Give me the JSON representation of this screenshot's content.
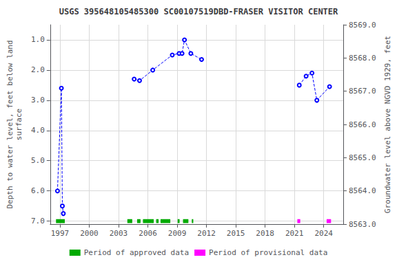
{
  "chart_data": {
    "type": "line",
    "title": "USGS 395648105485300 SC00107519DBD-FRASER VISITOR CENTER",
    "ylabel": "Depth to water level, feet below land\nsurface",
    "y2label": "Groundwater level above NGVD 1929, feet",
    "xlim": [
      1996.0,
      2026.0
    ],
    "xticks": [
      1997,
      2000,
      2003,
      2006,
      2009,
      2012,
      2015,
      2018,
      2021,
      2024
    ],
    "ylim": [
      7.1,
      0.5
    ],
    "yticks": [
      {
        "value": 1.0,
        "label": "1.0"
      },
      {
        "value": 2.0,
        "label": "2.0"
      },
      {
        "value": 3.0,
        "label": "3.0"
      },
      {
        "value": 4.0,
        "label": "4.0"
      },
      {
        "value": 5.0,
        "label": "5.0"
      },
      {
        "value": 6.0,
        "label": "6.0"
      },
      {
        "value": 7.0,
        "label": "7.0"
      }
    ],
    "y2lim": [
      8563.0,
      8569.0
    ],
    "y2ticks": [
      {
        "value": 8563.0,
        "label": "8563.0"
      },
      {
        "value": 8564.0,
        "label": "8564.0"
      },
      {
        "value": 8565.0,
        "label": "8565.0"
      },
      {
        "value": 8566.0,
        "label": "8566.0"
      },
      {
        "value": 8567.0,
        "label": "8567.0"
      },
      {
        "value": 8568.0,
        "label": "8568.0"
      },
      {
        "value": 8569.0,
        "label": "8569.0"
      }
    ],
    "grid": true,
    "legend": "bottom",
    "series": [
      {
        "type": "line",
        "color": "#0000FF",
        "line_style": "dashed",
        "marker": "open_circle",
        "x": [
          1996.75,
          1997.15,
          1997.25,
          1997.35,
          null,
          2004.6,
          2005.15,
          2006.5,
          2008.5,
          2009.2,
          2009.5,
          2009.75,
          2010.4,
          2011.5,
          null,
          2021.5,
          2022.2,
          2022.8,
          2023.3,
          2024.6
        ],
        "values": [
          6.0,
          2.6,
          6.5,
          6.75,
          null,
          2.3,
          2.35,
          2.0,
          1.5,
          1.45,
          1.45,
          1.0,
          1.45,
          1.65,
          null,
          2.5,
          2.2,
          2.1,
          3.0,
          2.55
        ]
      },
      {
        "name": "Period of approved data",
        "type": "range",
        "color": "#00AA00",
        "periods": [
          [
            1996.6,
            1997.5
          ],
          [
            2003.9,
            2004.4
          ],
          [
            2004.9,
            2005.25
          ],
          [
            2005.5,
            2006.6
          ],
          [
            2006.85,
            2007.1
          ],
          [
            2007.3,
            2008.3
          ],
          [
            2009.05,
            2009.25
          ],
          [
            2009.6,
            2010.15
          ],
          [
            2010.5,
            2010.65
          ]
        ],
        "y": 7.0,
        "height": 0.13
      },
      {
        "name": "Period of provisional data",
        "type": "range",
        "color": "#FF00FF",
        "periods": [
          [
            2021.3,
            2021.6
          ],
          [
            2024.3,
            2024.75
          ]
        ],
        "y": 7.0,
        "height": 0.13
      }
    ]
  }
}
